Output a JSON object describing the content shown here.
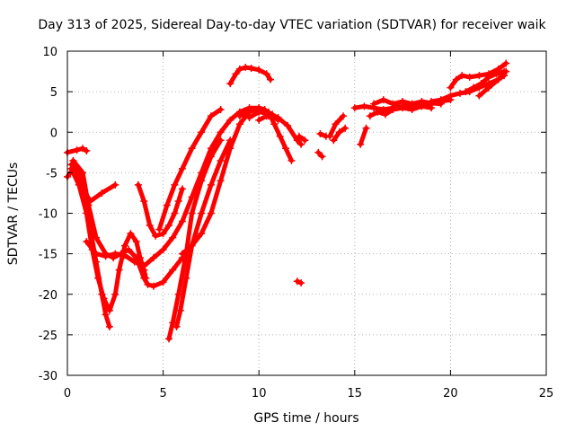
{
  "chart_data": {
    "type": "scatter",
    "title": "Day 313 of 2025, Sidereal Day-to-day VTEC variation (SDTVAR) for receiver waik",
    "xlabel": "GPS time / hours",
    "ylabel": "SDTVAR / TECUs",
    "xlim": [
      0,
      25
    ],
    "ylim": [
      -30,
      10
    ],
    "xticks": [
      "0",
      "5",
      "10",
      "15",
      "20",
      "25"
    ],
    "yticks": [
      "10",
      "5",
      "0",
      "-5",
      "-10",
      "-15",
      "-20",
      "-25",
      "-30"
    ],
    "grid": true,
    "legend": "none",
    "color": "#ff0000",
    "series": [
      {
        "x": [
          0,
          0.5,
          0.8,
          1.0
        ],
        "y": [
          -2.5,
          -2.2,
          -2.0,
          -2.3
        ]
      },
      {
        "x": [
          0,
          0.3,
          0.5,
          0.8,
          1.2,
          1.8,
          2.5
        ],
        "y": [
          -5.5,
          -4.5,
          -5.5,
          -7.0,
          -8.5,
          -7.5,
          -6.5
        ]
      },
      {
        "x": [
          0.2,
          0.6,
          0.9,
          1.2,
          1.5,
          1.8,
          2.0,
          2.2
        ],
        "y": [
          -4.0,
          -5.0,
          -8.0,
          -12.0,
          -16.0,
          -20.0,
          -22.5,
          -24.0
        ]
      },
      {
        "x": [
          0.3,
          0.8,
          1.1,
          1.5,
          2.0,
          2.4,
          2.8,
          3.2,
          3.6,
          4.0,
          4.2,
          4.5,
          5.0,
          5.5,
          6.0
        ],
        "y": [
          -3.5,
          -5.0,
          -9.0,
          -13.0,
          -15.0,
          -15.5,
          -15.0,
          -14.5,
          -15.5,
          -18.0,
          -18.8,
          -19.0,
          -18.5,
          -17.0,
          -15.5
        ]
      },
      {
        "x": [
          0.2,
          0.6,
          1.0,
          1.3,
          1.6,
          1.9,
          2.2,
          2.5,
          2.7,
          3.0,
          3.3,
          3.6,
          3.8,
          4.0,
          4.1
        ],
        "y": [
          -4.5,
          -6.5,
          -10.0,
          -14.5,
          -18.0,
          -20.5,
          -22.0,
          -20.0,
          -17.0,
          -14.0,
          -12.5,
          -13.5,
          -15.5,
          -17.0,
          -18.0
        ]
      },
      {
        "x": [
          1.0,
          1.5,
          2.0,
          2.5,
          3.0,
          3.5,
          4.0,
          4.5,
          5.0,
          5.5,
          6.0,
          6.5,
          7.0,
          7.5,
          8.0,
          8.5,
          9.0,
          9.5,
          10.0
        ],
        "y": [
          -13.5,
          -15.0,
          -15.3,
          -15.0,
          -15.2,
          -16.0,
          -16.5,
          -15.5,
          -14.5,
          -13.0,
          -11.0,
          -8.0,
          -5.0,
          -2.0,
          0.0,
          1.5,
          2.5,
          3.0,
          3.0
        ]
      },
      {
        "x": [
          3.7,
          4.0,
          4.3,
          4.6,
          5.0,
          5.3,
          5.6,
          5.8,
          6.0
        ],
        "y": [
          -6.5,
          -8.5,
          -11.5,
          -12.8,
          -12.5,
          -11.5,
          -10.0,
          -8.5,
          -7.0
        ]
      },
      {
        "x": [
          4.8,
          5.2,
          5.6,
          6.0,
          6.5,
          7.0,
          7.5,
          8.0
        ],
        "y": [
          -12.0,
          -9.0,
          -6.5,
          -4.5,
          -2.0,
          0.0,
          2.0,
          2.8
        ]
      },
      {
        "x": [
          5.3,
          5.5,
          5.8,
          6.2,
          6.5,
          7.0,
          7.5,
          8.0
        ],
        "y": [
          -25.5,
          -23.5,
          -20.0,
          -15.0,
          -10.0,
          -6.0,
          -3.0,
          -1.0
        ]
      },
      {
        "x": [
          5.7,
          5.9,
          6.2,
          6.5,
          7.0,
          7.5,
          8.0,
          8.5
        ],
        "y": [
          -24.0,
          -22.0,
          -18.0,
          -14.0,
          -10.0,
          -6.5,
          -3.5,
          -1.0
        ]
      },
      {
        "x": [
          6.0,
          6.5,
          7.0,
          7.5,
          8.0,
          8.5,
          9.0,
          9.5,
          10.0,
          10.3,
          10.5
        ],
        "y": [
          -15.0,
          -14.0,
          -12.5,
          -10.0,
          -6.0,
          -2.0,
          1.0,
          2.5,
          3.0,
          2.8,
          2.0
        ]
      },
      {
        "x": [
          8.5,
          8.8,
          9.0,
          9.3,
          9.6,
          10.0,
          10.4,
          10.6
        ],
        "y": [
          6.0,
          7.2,
          7.8,
          8.0,
          7.9,
          7.7,
          7.2,
          6.5
        ]
      },
      {
        "x": [
          9.0,
          9.5,
          10.0,
          10.5,
          10.8,
          11.1,
          11.4,
          11.7
        ],
        "y": [
          2.0,
          2.8,
          3.0,
          2.5,
          1.0,
          -0.5,
          -2.0,
          -3.5
        ]
      },
      {
        "x": [
          9.5,
          10.0,
          10.5,
          11.0,
          11.5,
          12.0,
          12.2
        ],
        "y": [
          1.8,
          2.5,
          2.3,
          1.8,
          0.8,
          -1.0,
          -1.5
        ]
      },
      {
        "x": [
          10.0,
          10.4,
          10.7,
          11.0
        ],
        "y": [
          1.5,
          2.0,
          2.2,
          1.5
        ]
      },
      {
        "x": [
          12.0,
          12.2
        ],
        "y": [
          -18.4,
          -18.6
        ]
      },
      {
        "x": [
          12.1,
          12.4
        ],
        "y": [
          -0.5,
          -1.0
        ]
      },
      {
        "x": [
          13.1,
          13.3
        ],
        "y": [
          -2.5,
          -3.0
        ]
      },
      {
        "x": [
          13.2,
          13.5
        ],
        "y": [
          -0.2,
          -0.5
        ]
      },
      {
        "x": [
          13.7,
          14.0,
          14.4
        ],
        "y": [
          -0.5,
          1.0,
          2.0
        ]
      },
      {
        "x": [
          13.9,
          14.2,
          14.5
        ],
        "y": [
          -1.0,
          0.0,
          0.5
        ]
      },
      {
        "x": [
          15.3,
          15.6
        ],
        "y": [
          -1.5,
          0.5
        ]
      },
      {
        "x": [
          15.0,
          15.5,
          16.0,
          16.5,
          17.0,
          17.5,
          18.0,
          18.5,
          19.0,
          19.5,
          20.0
        ],
        "y": [
          3.0,
          3.2,
          3.0,
          2.8,
          3.0,
          3.2,
          3.3,
          3.5,
          3.5,
          3.8,
          4.0
        ]
      },
      {
        "x": [
          15.8,
          16.2,
          16.6,
          17.0,
          17.5,
          18.0,
          18.5,
          19.0
        ],
        "y": [
          2.0,
          2.5,
          2.2,
          2.8,
          3.0,
          2.8,
          3.2,
          3.0
        ]
      },
      {
        "x": [
          16.0,
          16.5,
          17.0,
          17.5,
          18.0,
          18.5,
          19.0,
          19.5
        ],
        "y": [
          3.5,
          4.0,
          3.5,
          3.8,
          3.5,
          3.8,
          3.6,
          3.5
        ]
      },
      {
        "x": [
          19.0,
          19.5,
          20.0,
          20.5,
          21.0,
          21.5,
          22.0,
          22.5,
          22.8
        ],
        "y": [
          3.8,
          4.0,
          4.5,
          4.8,
          5.0,
          5.5,
          6.0,
          6.5,
          7.0
        ]
      },
      {
        "x": [
          20.0,
          20.3,
          20.6,
          21.0,
          21.5,
          22.0,
          22.5,
          22.9
        ],
        "y": [
          5.5,
          6.5,
          7.0,
          6.8,
          7.0,
          7.2,
          7.8,
          8.5
        ]
      },
      {
        "x": [
          20.8,
          21.2,
          21.6,
          22.0,
          22.4,
          22.8
        ],
        "y": [
          5.0,
          5.5,
          6.0,
          6.8,
          7.2,
          7.5
        ]
      },
      {
        "x": [
          21.5,
          22.0,
          22.5,
          22.9
        ],
        "y": [
          4.5,
          5.5,
          6.5,
          7.5
        ]
      }
    ]
  }
}
